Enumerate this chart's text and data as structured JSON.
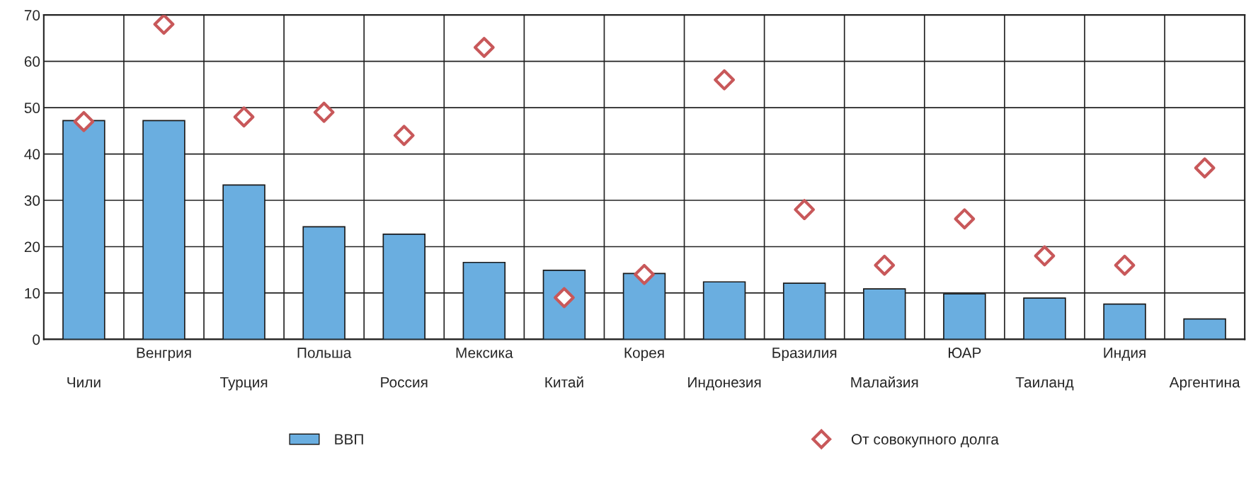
{
  "chart_data": {
    "type": "bar",
    "categories": [
      "Чили",
      "Венгрия",
      "Турция",
      "Польша",
      "Россия",
      "Мексика",
      "Китай",
      "Корея",
      "Индонезия",
      "Бразилия",
      "Малайзия",
      "ЮАР",
      "Таиланд",
      "Индия",
      "Аргентина"
    ],
    "series": [
      {
        "name": "ВВП",
        "color": "#6aaee0",
        "values": [
          47.2,
          47.2,
          33.3,
          24.3,
          22.7,
          16.6,
          14.9,
          14.2,
          12.4,
          12.1,
          10.9,
          9.8,
          8.9,
          7.6,
          4.4
        ]
      },
      {
        "name": "От совокупного долга",
        "type": "scatter",
        "marker": "diamond",
        "color": "#c8585a",
        "values": [
          47,
          68,
          48,
          49,
          44,
          63,
          9,
          14,
          56,
          28,
          16,
          26,
          18,
          16,
          37
        ]
      }
    ],
    "ylim": [
      0,
      70
    ],
    "yticks": [
      0,
      10,
      20,
      30,
      40,
      50,
      60,
      70
    ],
    "grid": true,
    "legend": "bottom"
  }
}
